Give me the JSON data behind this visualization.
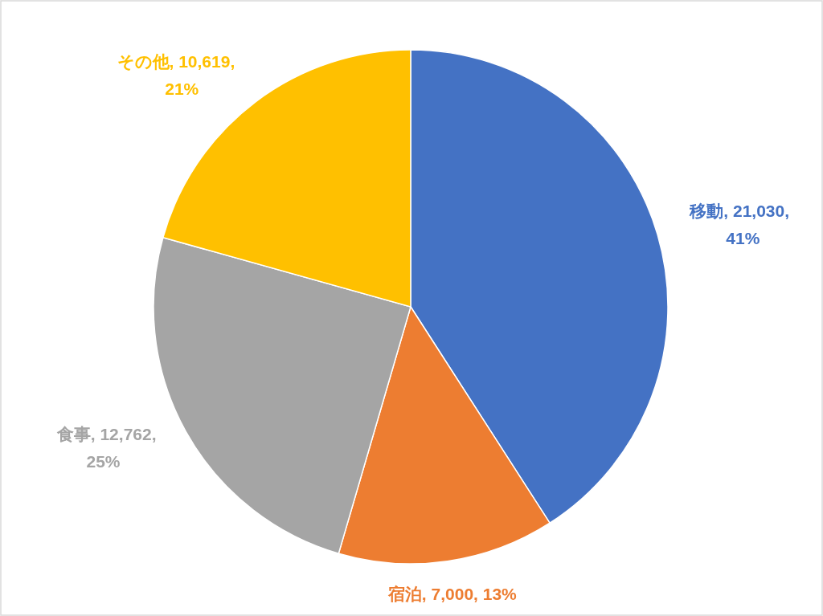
{
  "chart_data": {
    "type": "pie",
    "categories": [
      "移動",
      "宿泊",
      "食事",
      "その他"
    ],
    "values": [
      21030,
      7000,
      12762,
      10619
    ],
    "colors": [
      "#4472c4",
      "#ed7d31",
      "#a5a5a5",
      "#ffc000"
    ],
    "value_labels": [
      "21,030, 41%",
      "7,000, 13%",
      "12,762, 25%",
      "10,619, 21%"
    ]
  }
}
